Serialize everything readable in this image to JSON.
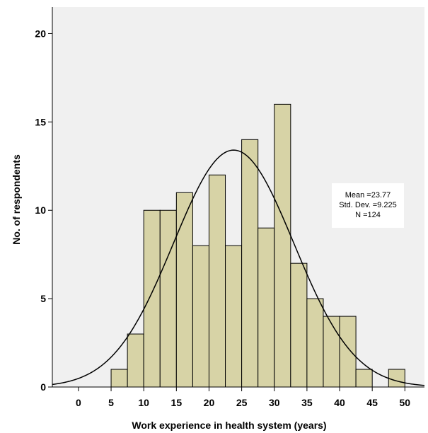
{
  "chart_data": {
    "type": "bar",
    "subtype": "histogram",
    "bin_width": 2.5,
    "bins": [
      {
        "start": 5,
        "end": 7.5,
        "count": 1
      },
      {
        "start": 7.5,
        "end": 10,
        "count": 3
      },
      {
        "start": 10,
        "end": 12.5,
        "count": 10
      },
      {
        "start": 12.5,
        "end": 15,
        "count": 10
      },
      {
        "start": 15,
        "end": 17.5,
        "count": 11
      },
      {
        "start": 17.5,
        "end": 20,
        "count": 8
      },
      {
        "start": 20,
        "end": 22.5,
        "count": 12
      },
      {
        "start": 22.5,
        "end": 25,
        "count": 8
      },
      {
        "start": 25,
        "end": 27.5,
        "count": 14
      },
      {
        "start": 27.5,
        "end": 30,
        "count": 9
      },
      {
        "start": 30,
        "end": 32.5,
        "count": 16
      },
      {
        "start": 32.5,
        "end": 35,
        "count": 7
      },
      {
        "start": 35,
        "end": 37.5,
        "count": 5
      },
      {
        "start": 37.5,
        "end": 40,
        "count": 4
      },
      {
        "start": 40,
        "end": 42.5,
        "count": 4
      },
      {
        "start": 42.5,
        "end": 45,
        "count": 1
      },
      {
        "start": 47.5,
        "end": 50,
        "count": 1
      }
    ],
    "normal_curve": {
      "mean": 23.77,
      "std_dev": 9.225,
      "n": 124
    },
    "title": "",
    "xlabel": "Work experience in health system (years)",
    "ylabel": "No. of respondents",
    "xlim": [
      -4,
      53
    ],
    "ylim": [
      0,
      21.5
    ],
    "x_ticks": [
      0,
      5,
      10,
      15,
      20,
      25,
      30,
      35,
      40,
      45,
      50
    ],
    "y_ticks": [
      0,
      5,
      10,
      15,
      20
    ],
    "grid": false,
    "legend": "none",
    "colors": {
      "bar_fill": "#d7d3a6",
      "bar_stroke": "#000000",
      "plot_background": "#f0f0f0",
      "curve": "#000000",
      "stats_box": "#ffffff"
    },
    "stats_box": {
      "lines": [
        "Mean =23.77",
        "Std. Dev. =9.225",
        "N =124"
      ],
      "placement": "right"
    }
  }
}
